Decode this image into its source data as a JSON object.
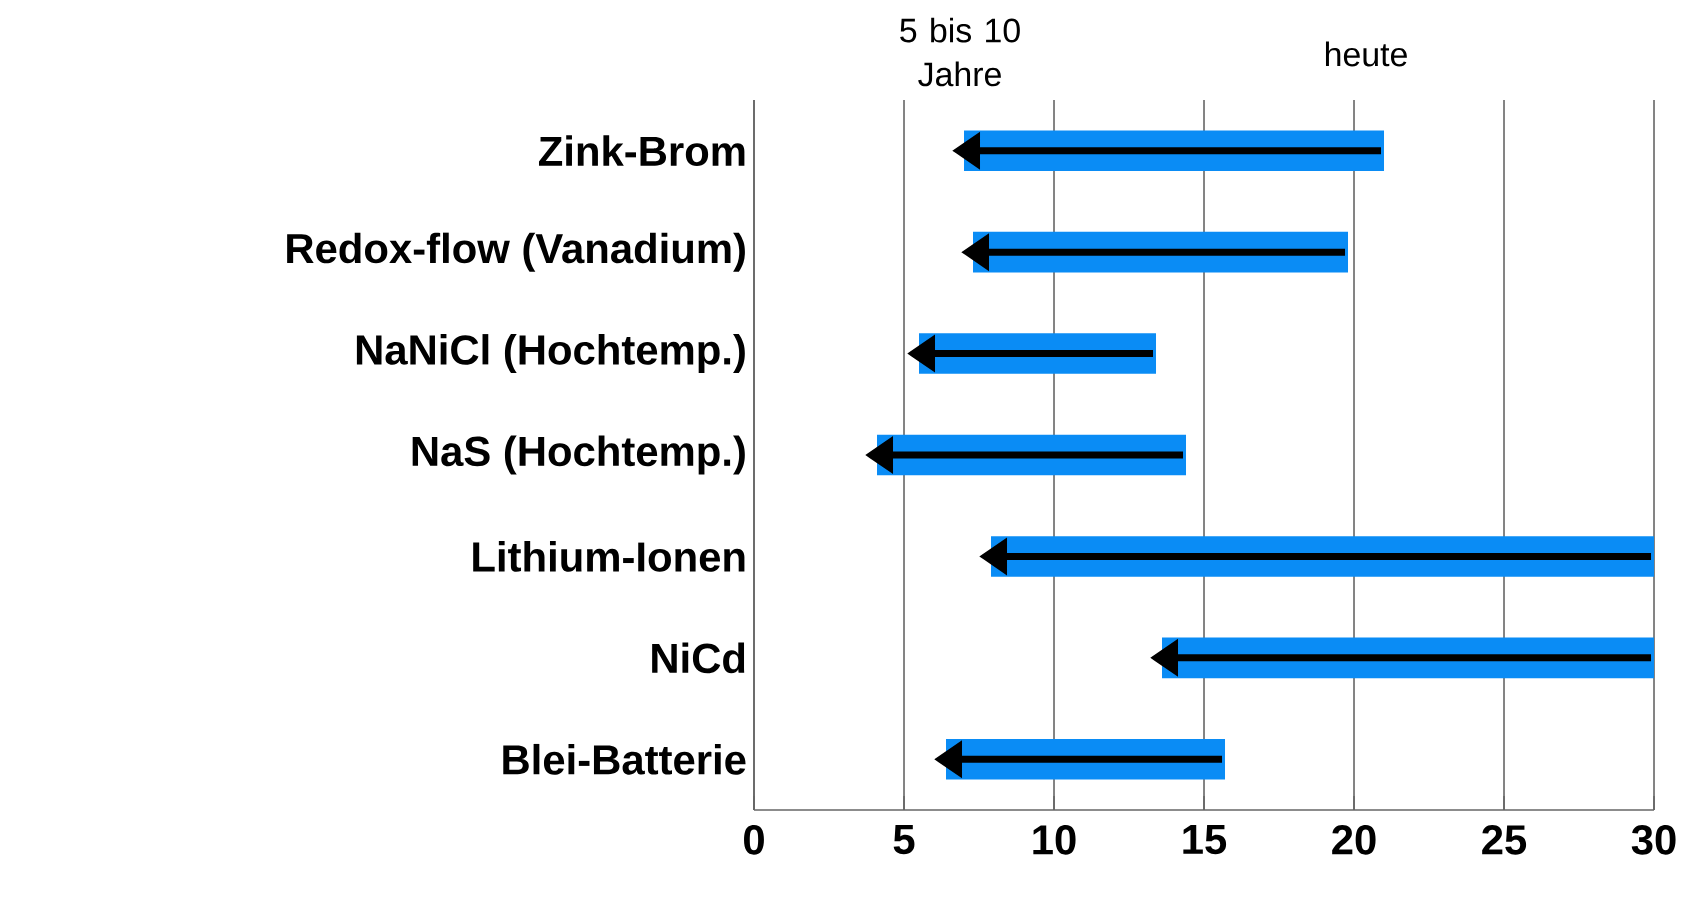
{
  "chart_data": {
    "type": "bar",
    "orientation": "horizontal",
    "annotations": [
      "5 bis 10 Jahre",
      "heute"
    ],
    "categories": [
      "Zink-Brom",
      "Redox-flow (Vanadium)",
      "NaNiCl (Hochtemp.)",
      "NaS (Hochtemp.)",
      "Lithium-Ionen",
      "NiCd",
      "Blei-Batterie"
    ],
    "base": [
      7.0,
      7.3,
      5.5,
      4.1,
      7.9,
      13.6,
      6.4
    ],
    "values": [
      14.0,
      12.5,
      7.9,
      10.3,
      22.1,
      16.4,
      9.3
    ],
    "color": "#0a8cf5",
    "xlim": [
      0,
      30
    ],
    "xticks": [
      0,
      5,
      10,
      15,
      20,
      25,
      30
    ],
    "grid": "x"
  }
}
